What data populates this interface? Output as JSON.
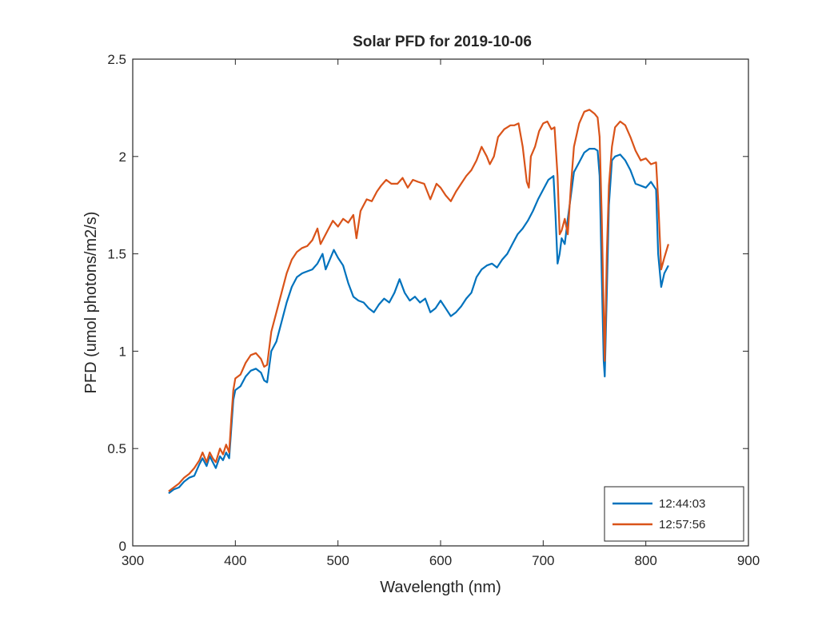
{
  "chart_data": {
    "type": "line",
    "title": "Solar PFD for 2019-10-06",
    "xlabel": "Wavelength (nm)",
    "ylabel": "PFD (umol photons/m2/s)",
    "xlim": [
      300,
      900
    ],
    "ylim": [
      0,
      2.5
    ],
    "xticks": [
      300,
      400,
      500,
      600,
      700,
      800,
      900
    ],
    "yticks": [
      0,
      0.5,
      1,
      1.5,
      2,
      2.5
    ],
    "xtick_labels": [
      "300",
      "400",
      "500",
      "600",
      "700",
      "800",
      "900"
    ],
    "ytick_labels": [
      "0",
      "0.5",
      "1",
      "1.5",
      "2",
      "2.5"
    ],
    "grid": false,
    "legend_position": "bottom-right",
    "series": [
      {
        "name": "12:44:03",
        "color": "#0072BD",
        "x": [
          335,
          340,
          345,
          350,
          355,
          360,
          365,
          368,
          372,
          375,
          378,
          381,
          385,
          388,
          391,
          394,
          396,
          398,
          400,
          405,
          410,
          415,
          420,
          425,
          428,
          431,
          435,
          440,
          445,
          450,
          455,
          460,
          465,
          470,
          475,
          480,
          485,
          488,
          492,
          496,
          500,
          505,
          510,
          515,
          520,
          525,
          530,
          535,
          540,
          545,
          550,
          555,
          560,
          565,
          570,
          575,
          580,
          585,
          590,
          595,
          600,
          605,
          610,
          615,
          620,
          625,
          630,
          635,
          640,
          645,
          650,
          655,
          660,
          665,
          670,
          675,
          680,
          685,
          690,
          695,
          700,
          705,
          710,
          712,
          714,
          716,
          718,
          721,
          724,
          727,
          730,
          735,
          740,
          745,
          750,
          753,
          755,
          757,
          759,
          760,
          762,
          764,
          767,
          770,
          775,
          780,
          785,
          790,
          795,
          800,
          805,
          810,
          812,
          815,
          818,
          822
        ],
        "y": [
          0.27,
          0.29,
          0.3,
          0.33,
          0.35,
          0.36,
          0.42,
          0.45,
          0.41,
          0.46,
          0.43,
          0.4,
          0.46,
          0.44,
          0.48,
          0.45,
          0.6,
          0.75,
          0.8,
          0.82,
          0.87,
          0.9,
          0.91,
          0.89,
          0.85,
          0.84,
          1.0,
          1.05,
          1.15,
          1.25,
          1.33,
          1.38,
          1.4,
          1.41,
          1.42,
          1.45,
          1.5,
          1.42,
          1.47,
          1.52,
          1.48,
          1.44,
          1.35,
          1.28,
          1.26,
          1.25,
          1.22,
          1.2,
          1.24,
          1.27,
          1.25,
          1.3,
          1.37,
          1.3,
          1.26,
          1.28,
          1.25,
          1.27,
          1.2,
          1.22,
          1.26,
          1.22,
          1.18,
          1.2,
          1.23,
          1.27,
          1.3,
          1.38,
          1.42,
          1.44,
          1.45,
          1.43,
          1.47,
          1.5,
          1.55,
          1.6,
          1.63,
          1.67,
          1.72,
          1.78,
          1.83,
          1.88,
          1.9,
          1.7,
          1.45,
          1.5,
          1.58,
          1.55,
          1.68,
          1.8,
          1.92,
          1.97,
          2.02,
          2.04,
          2.04,
          2.03,
          1.9,
          1.4,
          0.95,
          0.87,
          1.3,
          1.75,
          1.98,
          2.0,
          2.01,
          1.98,
          1.93,
          1.86,
          1.85,
          1.84,
          1.87,
          1.83,
          1.5,
          1.33,
          1.4,
          1.44
        ]
      },
      {
        "name": "12:57:56",
        "color": "#D95319",
        "x": [
          335,
          340,
          345,
          350,
          355,
          360,
          365,
          368,
          372,
          375,
          378,
          381,
          385,
          388,
          391,
          394,
          396,
          398,
          400,
          405,
          410,
          415,
          420,
          425,
          428,
          431,
          435,
          440,
          445,
          450,
          455,
          460,
          465,
          470,
          475,
          480,
          483,
          486,
          490,
          495,
          500,
          505,
          510,
          515,
          518,
          522,
          528,
          533,
          538,
          542,
          547,
          552,
          558,
          563,
          568,
          573,
          578,
          584,
          590,
          596,
          600,
          605,
          610,
          615,
          620,
          625,
          630,
          635,
          640,
          645,
          648,
          652,
          656,
          662,
          668,
          672,
          676,
          680,
          684,
          686,
          688,
          692,
          696,
          700,
          704,
          708,
          711,
          714,
          716,
          718,
          721,
          724,
          727,
          730,
          735,
          740,
          745,
          750,
          753,
          755,
          757,
          759,
          760,
          762,
          764,
          767,
          770,
          775,
          780,
          785,
          790,
          795,
          800,
          805,
          810,
          812,
          815,
          818,
          822
        ],
        "y": [
          0.28,
          0.3,
          0.32,
          0.35,
          0.37,
          0.4,
          0.44,
          0.48,
          0.43,
          0.48,
          0.45,
          0.43,
          0.5,
          0.47,
          0.52,
          0.48,
          0.65,
          0.8,
          0.86,
          0.88,
          0.94,
          0.98,
          0.99,
          0.96,
          0.92,
          0.93,
          1.1,
          1.2,
          1.3,
          1.4,
          1.47,
          1.51,
          1.53,
          1.54,
          1.57,
          1.63,
          1.55,
          1.58,
          1.62,
          1.67,
          1.64,
          1.68,
          1.66,
          1.7,
          1.58,
          1.72,
          1.78,
          1.77,
          1.82,
          1.85,
          1.88,
          1.86,
          1.86,
          1.89,
          1.84,
          1.88,
          1.87,
          1.86,
          1.78,
          1.86,
          1.84,
          1.8,
          1.77,
          1.82,
          1.86,
          1.9,
          1.93,
          1.98,
          2.05,
          2.0,
          1.96,
          2.0,
          2.1,
          2.14,
          2.16,
          2.16,
          2.17,
          2.05,
          1.87,
          1.84,
          2.0,
          2.05,
          2.13,
          2.17,
          2.18,
          2.14,
          2.15,
          1.9,
          1.6,
          1.62,
          1.68,
          1.6,
          1.85,
          2.05,
          2.17,
          2.23,
          2.24,
          2.22,
          2.2,
          2.1,
          1.7,
          1.2,
          0.95,
          1.5,
          1.85,
          2.05,
          2.15,
          2.18,
          2.16,
          2.1,
          2.03,
          1.98,
          1.99,
          1.96,
          1.97,
          1.78,
          1.42,
          1.48,
          1.55
        ]
      }
    ]
  }
}
